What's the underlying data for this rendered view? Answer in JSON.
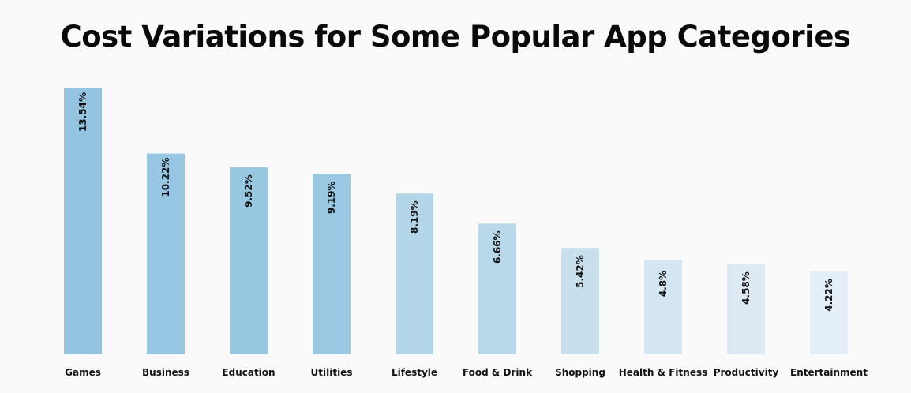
{
  "chart_data": {
    "type": "bar",
    "title": "Cost Variations for Some Popular App Categories",
    "categories": [
      "Games",
      "Business",
      "Education",
      "Utilities",
      "Lifestyle",
      "Food & Drink",
      "Shopping",
      "Health & Fitness",
      "Productivity",
      "Entertainment"
    ],
    "values": [
      13.54,
      10.22,
      9.52,
      9.19,
      8.19,
      6.66,
      5.42,
      4.8,
      4.58,
      4.22
    ],
    "value_labels": [
      "13.54%",
      "10.22%",
      "9.52%",
      "9.19%",
      "8.19%",
      "6.66%",
      "5.42%",
      "4.8%",
      "4.58%",
      "4.22%"
    ],
    "colors": [
      "#94c4e0",
      "#96c6e1",
      "#98c7e2",
      "#9bc9e3",
      "#b2d5e8",
      "#b9d9ea",
      "#c8e0ee",
      "#d3e6f1",
      "#dde9f3",
      "#e4eef6"
    ],
    "xlabel": "",
    "ylabel": "",
    "ylim": [
      0,
      13.54
    ],
    "grid": false,
    "legend": "none"
  }
}
